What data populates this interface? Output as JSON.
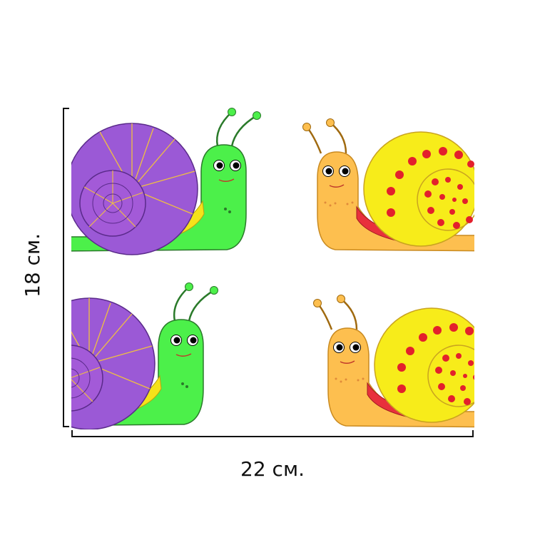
{
  "dimensions": {
    "height": "18 см.",
    "width": "22 см."
  }
}
